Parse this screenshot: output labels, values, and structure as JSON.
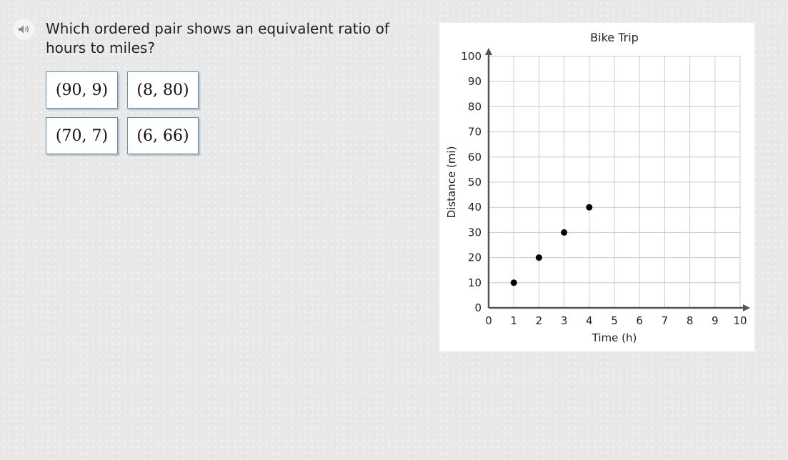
{
  "question": {
    "text": "Which ordered pair shows an equivalent ratio of hours to miles?",
    "audio_icon": "speaker-icon"
  },
  "choices": [
    {
      "label": "(90, 9)"
    },
    {
      "label": "(8, 80)"
    },
    {
      "label": "(70, 7)"
    },
    {
      "label": "(6, 66)"
    }
  ],
  "chart_data": {
    "type": "scatter",
    "title": "Bike Trip",
    "xlabel": "Time (h)",
    "ylabel": "Distance (mi)",
    "xlim": [
      0,
      10
    ],
    "ylim": [
      0,
      100
    ],
    "x_ticks": [
      0,
      1,
      2,
      3,
      4,
      5,
      6,
      7,
      8,
      9,
      10
    ],
    "y_ticks": [
      0,
      10,
      20,
      30,
      40,
      50,
      60,
      70,
      80,
      90,
      100
    ],
    "grid": true,
    "series": [
      {
        "points": [
          {
            "x": 1,
            "y": 10
          },
          {
            "x": 2,
            "y": 20
          },
          {
            "x": 3,
            "y": 30
          },
          {
            "x": 4,
            "y": 40
          }
        ]
      }
    ],
    "colors": {
      "points": "#000000",
      "grid": "#cccccc",
      "axis": "#555555"
    }
  }
}
